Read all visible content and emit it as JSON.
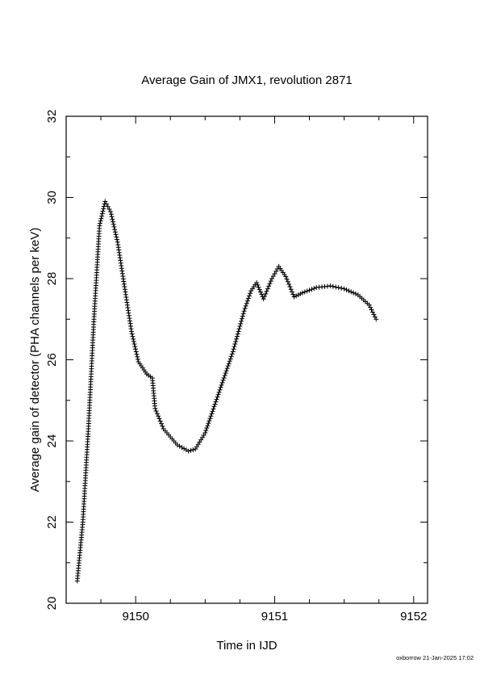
{
  "chart_data": {
    "type": "scatter",
    "title": "Average Gain of JMX1, revolution 2871",
    "xlabel": "Time in IJD",
    "ylabel": "Average gain of detector (PHA channels per keV)",
    "xlim": [
      9149.5,
      9152.1
    ],
    "ylim": [
      20,
      32
    ],
    "xticks": [
      9150,
      9151,
      9152
    ],
    "yticks": [
      20,
      22,
      24,
      26,
      28,
      30,
      32
    ],
    "x_minor_step": 0.25,
    "y_minor_step": 1,
    "marker": "plus",
    "marker_color": "#000000",
    "grid": false,
    "legend": "none",
    "curve_anchors": [
      [
        9149.58,
        20.55
      ],
      [
        9149.62,
        22.0
      ],
      [
        9149.66,
        24.3
      ],
      [
        9149.7,
        27.0
      ],
      [
        9149.74,
        29.3
      ],
      [
        9149.78,
        29.9
      ],
      [
        9149.82,
        29.65
      ],
      [
        9149.87,
        28.9
      ],
      [
        9149.92,
        27.8
      ],
      [
        9149.97,
        26.7
      ],
      [
        9150.02,
        25.95
      ],
      [
        9150.08,
        25.65
      ],
      [
        9150.12,
        25.55
      ],
      [
        9150.14,
        24.8
      ],
      [
        9150.2,
        24.3
      ],
      [
        9150.3,
        23.9
      ],
      [
        9150.38,
        23.75
      ],
      [
        9150.43,
        23.8
      ],
      [
        9150.5,
        24.2
      ],
      [
        9150.6,
        25.2
      ],
      [
        9150.7,
        26.2
      ],
      [
        9150.78,
        27.2
      ],
      [
        9150.83,
        27.7
      ],
      [
        9150.87,
        27.9
      ],
      [
        9150.92,
        27.5
      ],
      [
        9150.98,
        28.0
      ],
      [
        9151.03,
        28.3
      ],
      [
        9151.08,
        28.05
      ],
      [
        9151.14,
        27.55
      ],
      [
        9151.2,
        27.65
      ],
      [
        9151.3,
        27.78
      ],
      [
        9151.4,
        27.82
      ],
      [
        9151.5,
        27.75
      ],
      [
        9151.6,
        27.6
      ],
      [
        9151.68,
        27.35
      ],
      [
        9151.73,
        27.0
      ]
    ]
  },
  "footer": {
    "credit": "oxborrow 21-Jan-2025 17:02"
  }
}
